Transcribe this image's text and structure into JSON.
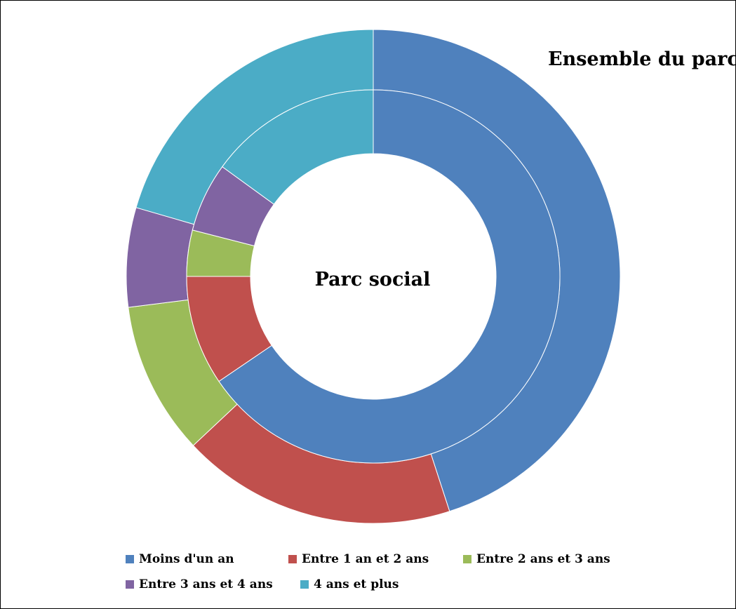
{
  "chart_data": {
    "type": "pie",
    "variant": "donut",
    "rings": [
      {
        "name": "Ensemble du parc",
        "values": [
          45,
          18,
          10,
          6.5,
          20.5
        ]
      },
      {
        "name": "Parc social",
        "values": [
          65.5,
          9.5,
          4,
          6,
          15
        ]
      }
    ],
    "categories": [
      "Moins d'un an",
      "Entre 1 an et 2 ans",
      "Entre 2 ans et 3 ans",
      "Entre 3 ans et 4 ans",
      "4 ans et plus"
    ],
    "colors": [
      "#4F81BD",
      "#C0504D",
      "#9BBB59",
      "#8064A2",
      "#4BACC6"
    ],
    "legend": "bottom"
  },
  "labels": {
    "outer": "Ensemble du parc",
    "inner": "Parc social"
  }
}
